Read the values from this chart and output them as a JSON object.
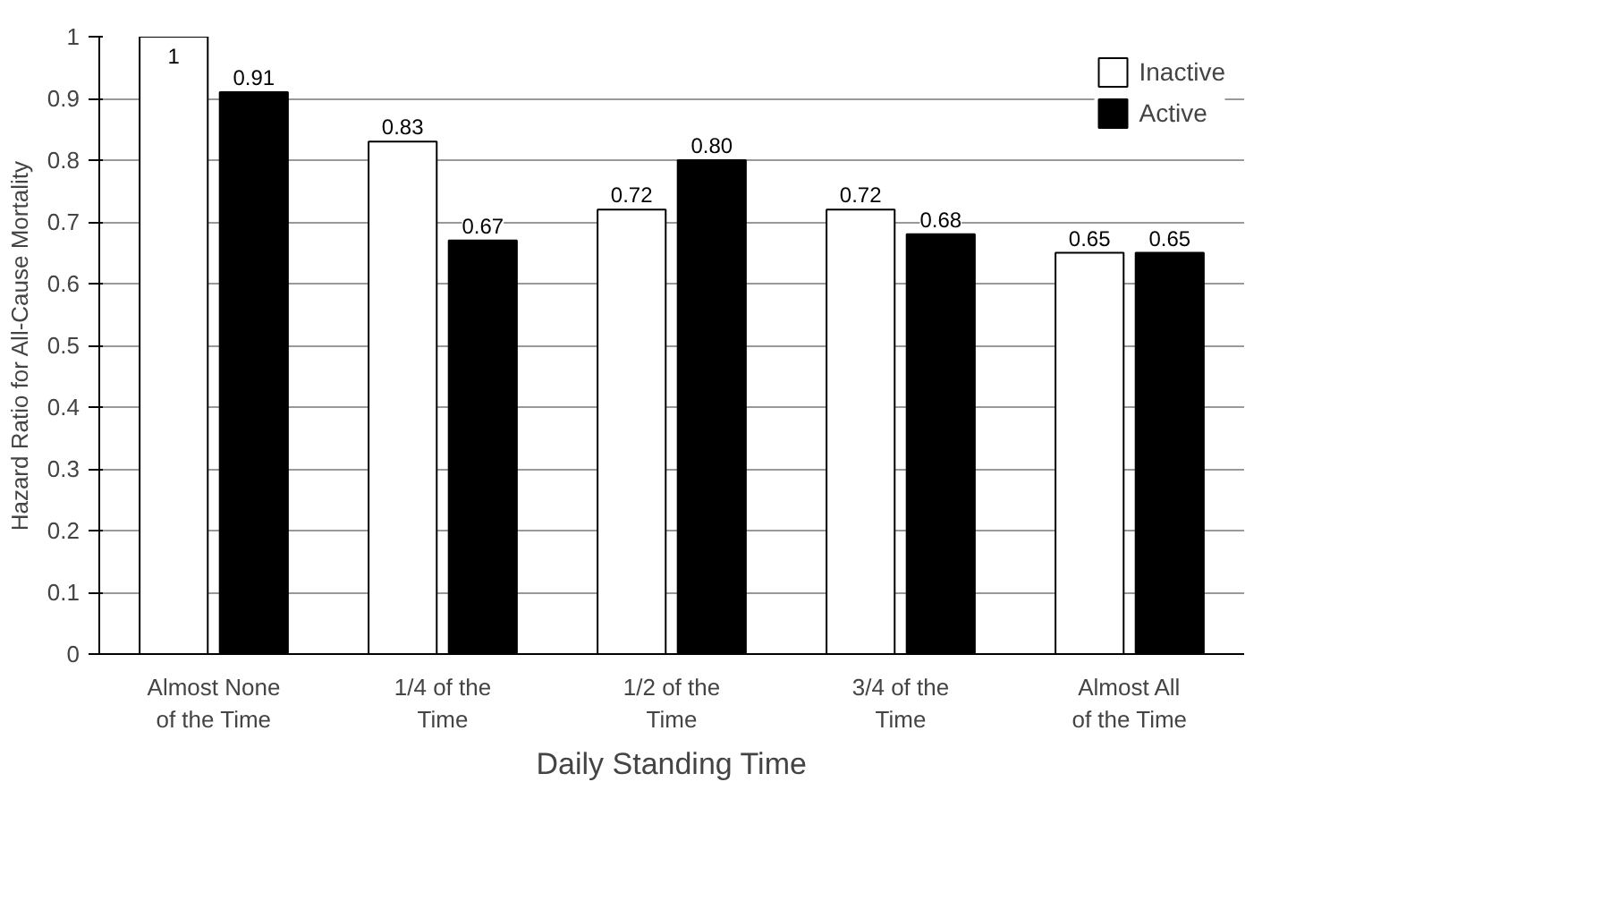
{
  "chart_data": {
    "type": "bar",
    "xlabel": "Daily Standing Time",
    "ylabel": "Hazard Ratio for All-Cause Mortality",
    "categories": [
      "Almost None of the Time",
      "1/4 of the Time",
      "1/2 of the Time",
      "3/4 of the Time",
      "Almost All of the Time"
    ],
    "series": [
      {
        "name": "Inactive",
        "color": "#ffffff",
        "values": [
          1,
          0.83,
          0.72,
          0.72,
          0.65
        ],
        "value_labels": [
          "1",
          "0.83",
          "0.72",
          "0.72",
          "0.65"
        ]
      },
      {
        "name": "Active",
        "color": "#000000",
        "values": [
          0.91,
          0.67,
          0.8,
          0.68,
          0.65
        ],
        "value_labels": [
          "0.91",
          "0.67",
          "0.80",
          "0.68",
          "0.65"
        ]
      }
    ],
    "ylim": [
      0,
      1
    ],
    "yticks": [
      0,
      0.1,
      0.2,
      0.3,
      0.4,
      0.5,
      0.6,
      0.7,
      0.8,
      0.9,
      1
    ],
    "grid": "y",
    "legend": "top right"
  }
}
